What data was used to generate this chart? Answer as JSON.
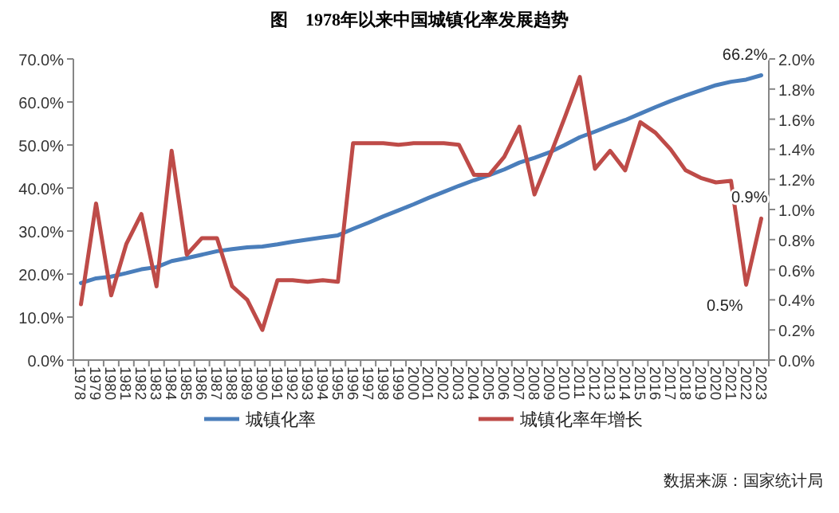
{
  "chart_data": {
    "type": "line",
    "title": "图　1978年以来中国城镇化率发展趋势",
    "categories": [
      "1978",
      "1979",
      "1980",
      "1981",
      "1982",
      "1983",
      "1984",
      "1985",
      "1986",
      "1987",
      "1988",
      "1989",
      "1990",
      "1991",
      "1992",
      "1993",
      "1994",
      "1995",
      "1996",
      "1997",
      "1998",
      "1999",
      "2000",
      "2001",
      "2002",
      "2003",
      "2004",
      "2005",
      "2006",
      "2007",
      "2008",
      "2009",
      "2010",
      "2011",
      "2012",
      "2013",
      "2014",
      "2015",
      "2016",
      "2017",
      "2018",
      "2019",
      "2020",
      "2021",
      "2022",
      "2023"
    ],
    "series": [
      {
        "name": "城镇化率",
        "color": "#4a7ebb",
        "values": [
          17.9,
          19.0,
          19.4,
          20.2,
          21.1,
          21.6,
          23.0,
          23.7,
          24.5,
          25.3,
          25.8,
          26.2,
          26.4,
          26.9,
          27.5,
          28.0,
          28.5,
          29.0,
          30.5,
          31.9,
          33.4,
          34.8,
          36.2,
          37.7,
          39.1,
          40.5,
          41.8,
          43.0,
          44.3,
          45.9,
          47.0,
          48.3,
          50.0,
          51.8,
          53.1,
          54.5,
          55.8,
          57.3,
          58.8,
          60.2,
          61.5,
          62.7,
          63.9,
          64.7,
          65.2,
          66.2
        ],
        "value_labels": [
          null,
          null,
          null,
          null,
          null,
          null,
          null,
          null,
          null,
          null,
          null,
          null,
          null,
          null,
          null,
          null,
          null,
          null,
          null,
          null,
          null,
          null,
          null,
          null,
          null,
          null,
          null,
          null,
          null,
          null,
          null,
          null,
          null,
          null,
          null,
          null,
          null,
          null,
          null,
          null,
          null,
          null,
          null,
          null,
          null,
          "66.2%"
        ]
      },
      {
        "name": "城镇化率年增长",
        "color": "#be4b48",
        "axis": "y2",
        "values": [
          0.37,
          1.04,
          0.43,
          0.77,
          0.97,
          0.49,
          1.39,
          0.7,
          0.81,
          0.81,
          0.49,
          0.4,
          0.2,
          0.53,
          0.53,
          0.52,
          0.53,
          0.52,
          1.44,
          1.44,
          1.44,
          1.43,
          1.44,
          1.44,
          1.44,
          1.43,
          1.23,
          1.23,
          1.35,
          1.55,
          1.1,
          1.35,
          1.61,
          1.88,
          1.27,
          1.39,
          1.26,
          1.58,
          1.51,
          1.4,
          1.26,
          1.21,
          1.18,
          1.19,
          0.5,
          0.94
        ],
        "value_labels": [
          null,
          null,
          null,
          null,
          null,
          null,
          null,
          null,
          null,
          null,
          null,
          null,
          null,
          null,
          null,
          null,
          null,
          null,
          null,
          null,
          null,
          null,
          null,
          null,
          null,
          null,
          null,
          null,
          null,
          null,
          null,
          null,
          null,
          null,
          null,
          null,
          null,
          null,
          null,
          null,
          null,
          null,
          null,
          null,
          "0.5%",
          "0.9%"
        ]
      }
    ],
    "ylim": [
      0,
      70
    ],
    "yticks": [
      {
        "value": 0,
        "label": "0.0%"
      },
      {
        "value": 10,
        "label": "10.0%"
      },
      {
        "value": 20,
        "label": "20.0%"
      },
      {
        "value": 30,
        "label": "30.0%"
      },
      {
        "value": 40,
        "label": "40.0%"
      },
      {
        "value": 50,
        "label": "50.0%"
      },
      {
        "value": 60,
        "label": "60.0%"
      },
      {
        "value": 70,
        "label": "70.0%"
      }
    ],
    "y2lim": [
      0,
      2
    ],
    "y2ticks": [
      {
        "value": 0,
        "label": "0.0%"
      },
      {
        "value": 0.2,
        "label": "0.2%"
      },
      {
        "value": 0.4,
        "label": "0.4%"
      },
      {
        "value": 0.6,
        "label": "0.6%"
      },
      {
        "value": 0.8,
        "label": "0.8%"
      },
      {
        "value": 1.0,
        "label": "1.0%"
      },
      {
        "value": 1.2,
        "label": "1.2%"
      },
      {
        "value": 1.4,
        "label": "1.4%"
      },
      {
        "value": 1.6,
        "label": "1.6%"
      },
      {
        "value": 1.8,
        "label": "1.8%"
      },
      {
        "value": 2.0,
        "label": "2.0%"
      }
    ],
    "legend": "bottom",
    "annotations": [
      "数据来源：国家统计局"
    ]
  }
}
